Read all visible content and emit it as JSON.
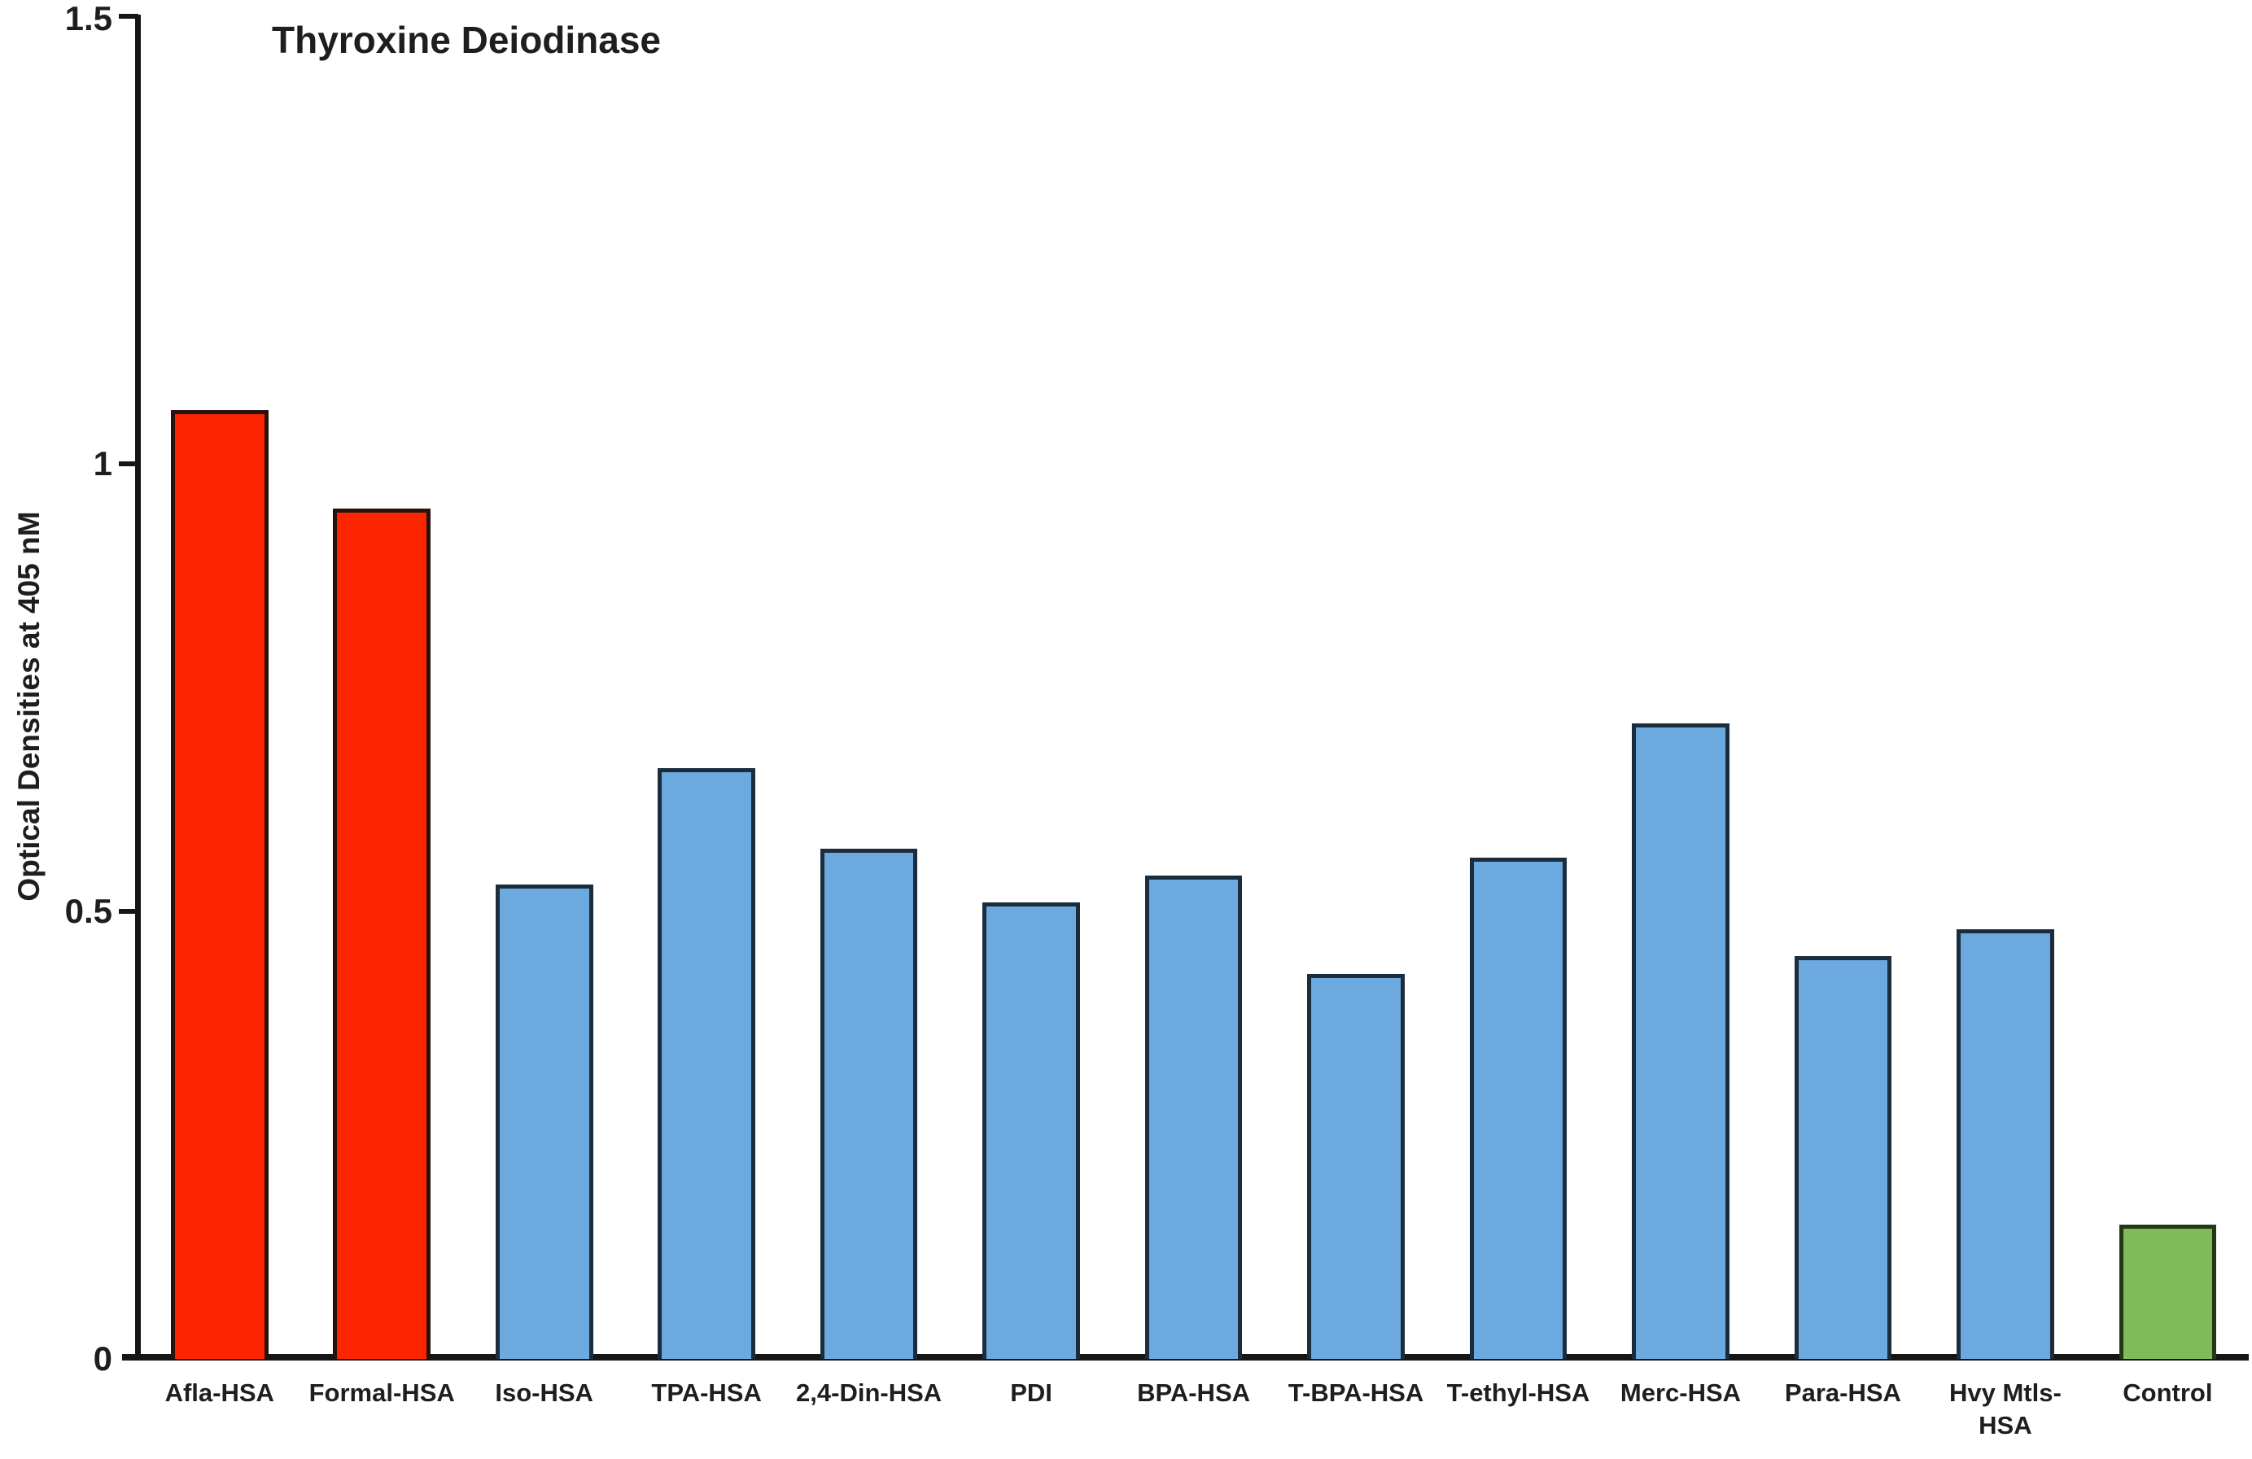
{
  "figure": {
    "title": "Thyroxine Deiodinase",
    "y_axis_title": "Optical Densities at 405 nM"
  },
  "colors": {
    "red_fill": "#FB2500",
    "red_border": "#27130D",
    "blue_fill": "#6BA9DF",
    "blue_border": "#1B2C3C",
    "green_fill": "#7DBC56",
    "green_border": "#223914",
    "axis": "#161616",
    "text": "#1E1E1E"
  },
  "chart_data": {
    "type": "bar",
    "title": "Thyroxine Deiodinase",
    "xlabel": "",
    "ylabel": "Optical Densities at 405 nM",
    "ylim": [
      0,
      1.5
    ],
    "y_tick_values": [
      0,
      0.5,
      1,
      1.5
    ],
    "y_tick_labels": [
      "0",
      "0.5",
      "1",
      "1.5"
    ],
    "grid": false,
    "legend": false,
    "categories": [
      "Afla-HSA",
      "Formal-HSA",
      "Iso-HSA",
      "TPA-HSA",
      "2,4-Din-HSA",
      "PDI",
      "BPA-HSA",
      "T-BPA-HSA",
      "T-ethyl-HSA",
      "Merc-HSA",
      "Para-HSA",
      "Hvy Mtls-HSA",
      "Control"
    ],
    "values": [
      1.06,
      0.95,
      0.53,
      0.66,
      0.57,
      0.51,
      0.54,
      0.43,
      0.56,
      0.71,
      0.45,
      0.48,
      0.15
    ],
    "bars": [
      {
        "label": "Afla-HSA",
        "value": 1.06,
        "color": "red"
      },
      {
        "label": "Formal-HSA",
        "value": 0.95,
        "color": "red"
      },
      {
        "label": "Iso-HSA",
        "value": 0.53,
        "color": "blue"
      },
      {
        "label": "TPA-HSA",
        "value": 0.66,
        "color": "blue"
      },
      {
        "label": "2,4-Din-HSA",
        "value": 0.57,
        "color": "blue"
      },
      {
        "label": "PDI",
        "value": 0.51,
        "color": "blue"
      },
      {
        "label": "BPA-HSA",
        "value": 0.54,
        "color": "blue"
      },
      {
        "label": "T-BPA-HSA",
        "value": 0.43,
        "color": "blue"
      },
      {
        "label": "T-ethyl-HSA",
        "value": 0.56,
        "color": "blue"
      },
      {
        "label": "Merc-HSA",
        "value": 0.71,
        "color": "blue"
      },
      {
        "label": "Para-HSA",
        "value": 0.45,
        "color": "blue"
      },
      {
        "label": "Hvy Mtls-\nHSA",
        "value": 0.48,
        "color": "blue"
      },
      {
        "label": "Control",
        "value": 0.15,
        "color": "green"
      }
    ]
  }
}
